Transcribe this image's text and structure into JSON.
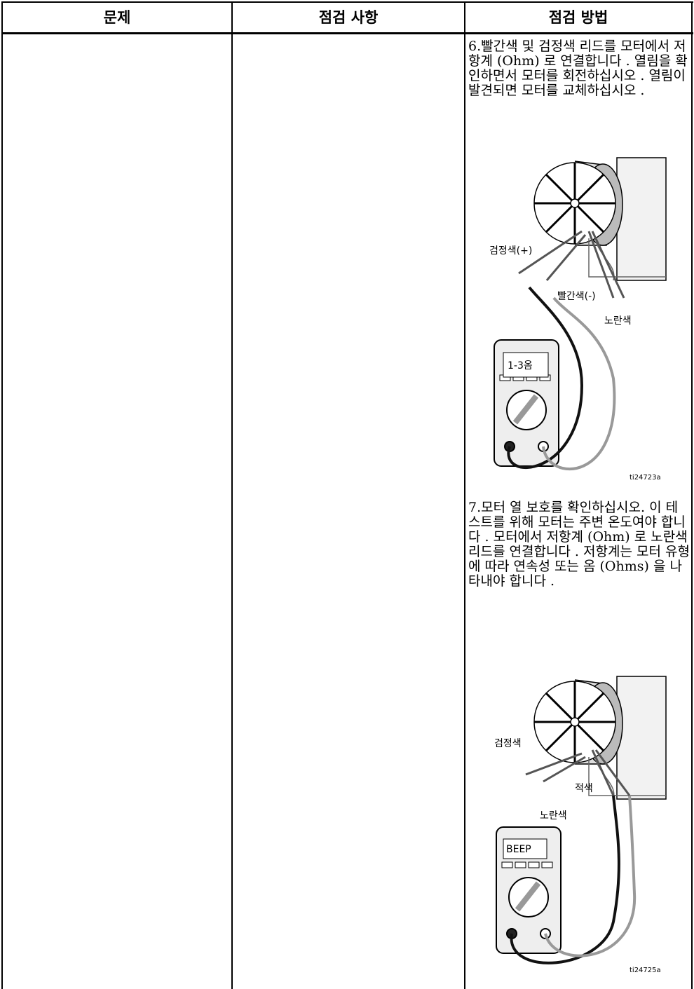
{
  "table": {
    "headers": [
      "문제",
      "점검 사항",
      "점검 방법"
    ],
    "steps": [
      "6.빨간색 및 검정색 리드를 모터에서 저항계 (Ohm) 로 연결합니다 . 열림을 확인하면서 모터를 회전하십시오 . 열림이 발견되면 모터를 교체하십시오 .",
      "7.모터 열 보호를 확인하십시오. 이 테스트를 위해 모터는 주변 온도여야 합니다 . 모터에서 저항계 (Ohm) 로 노란색 리드를 연결합니다 . 저항계는 모터 유형에 따라 연속성 또는 옴 (Ohms) 을 나타내야 합니다 ."
    ]
  },
  "figures": [
    {
      "labels": [
        "검정색(+)",
        "빨간색(-)",
        "노란색"
      ],
      "display": "1-3옴",
      "id": "ti24723a"
    },
    {
      "labels": [
        "검정색",
        "적색",
        "노란색"
      ],
      "display": "BEEP",
      "id": "ti24725a"
    }
  ]
}
